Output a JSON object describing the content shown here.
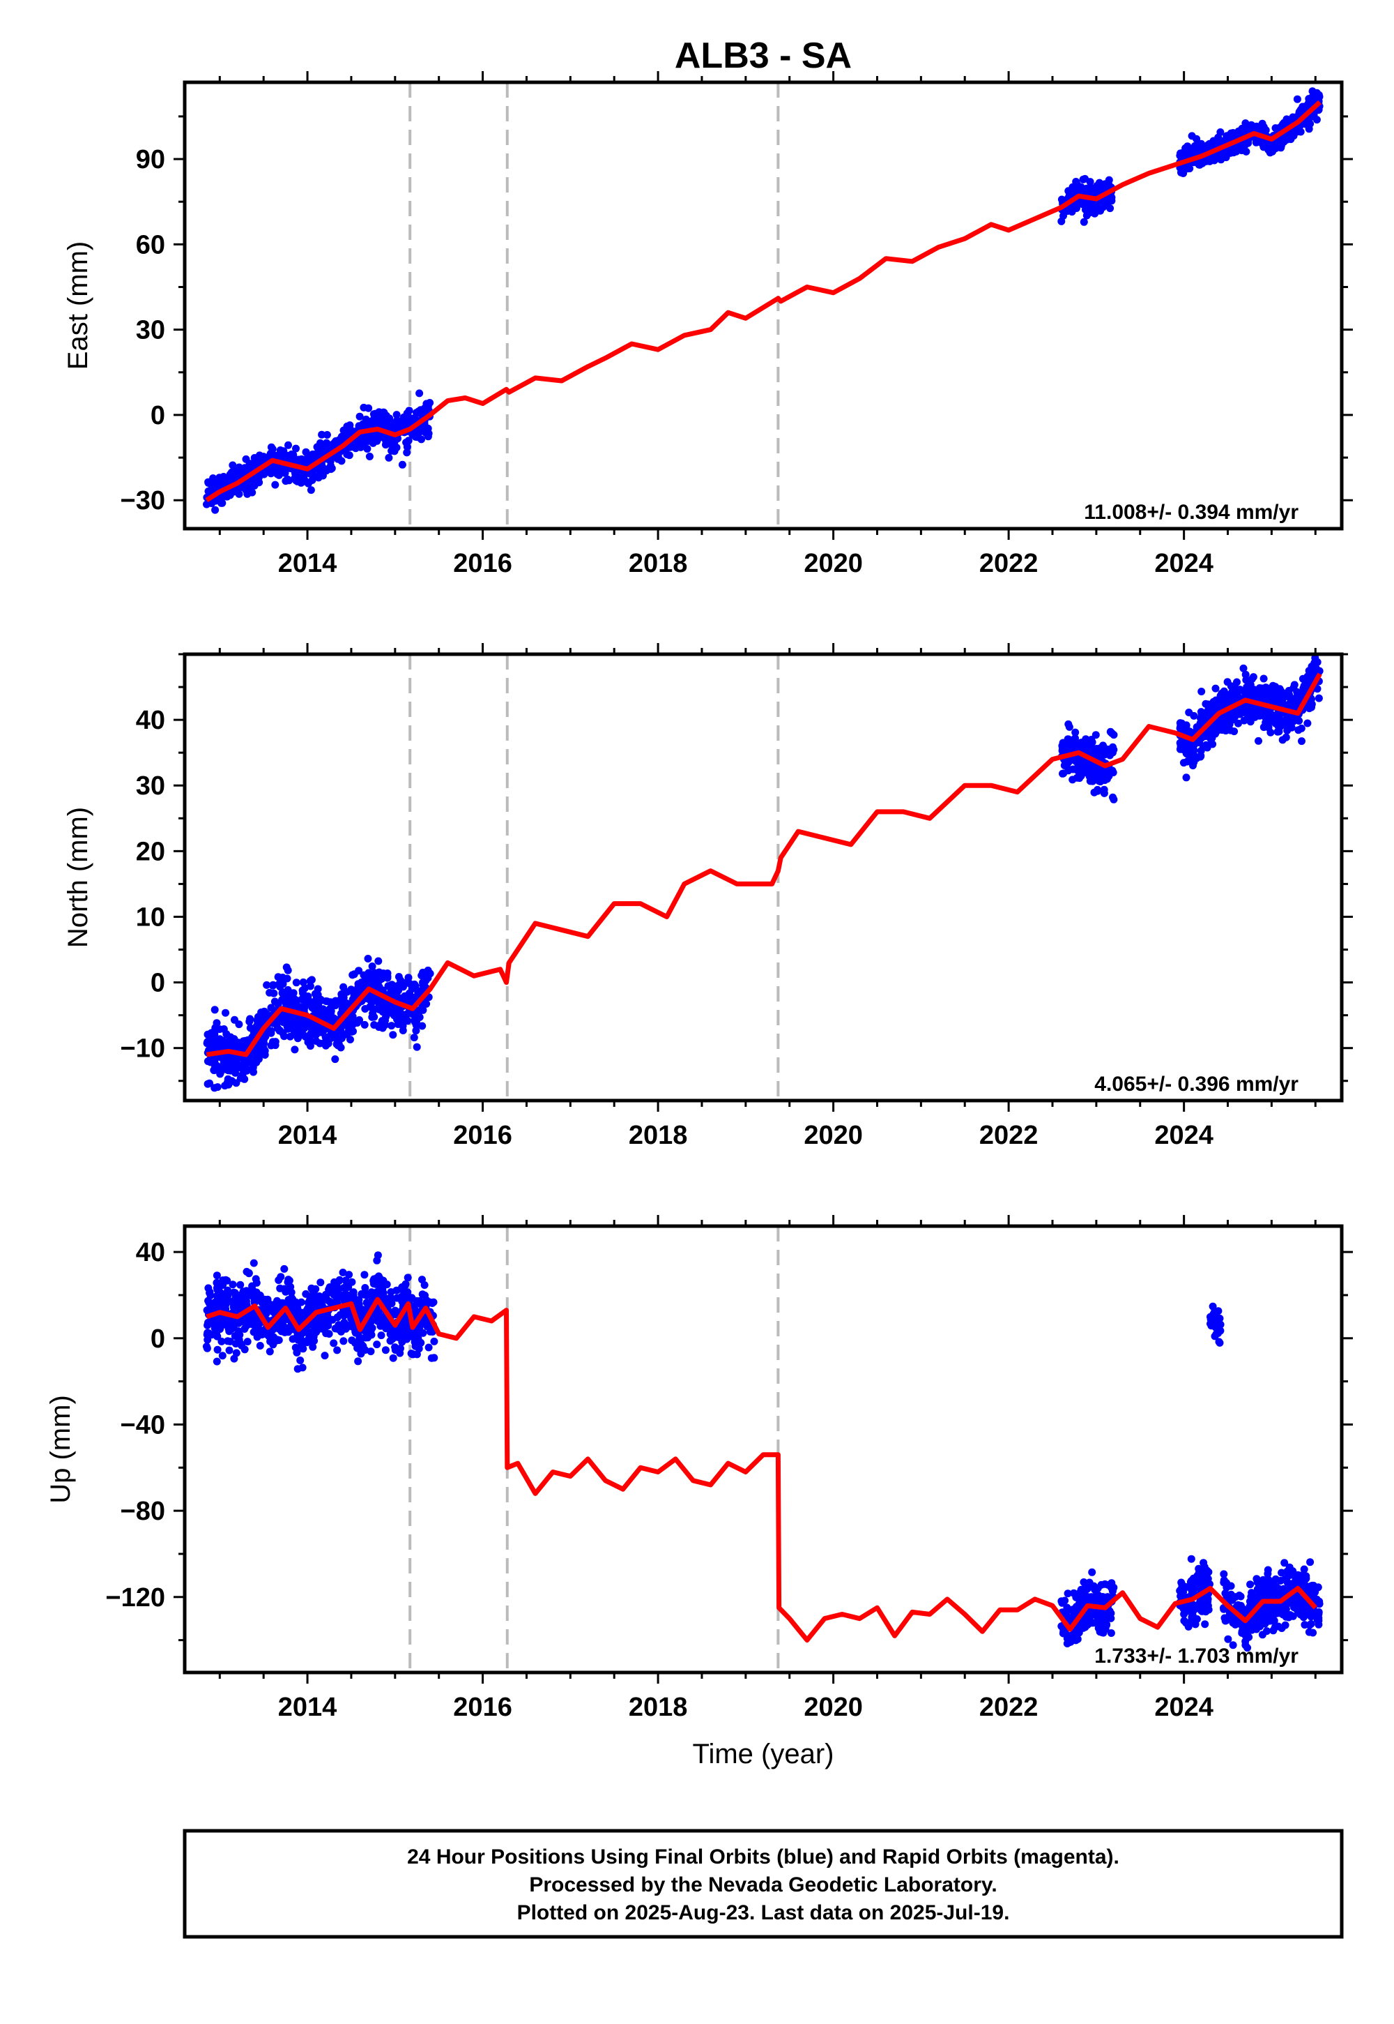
{
  "figure": {
    "title": "ALB3 - SA",
    "footer": [
      "24 Hour Positions Using Final Orbits (blue) and Rapid Orbits (magenta).",
      "Processed by the Nevada Geodetic Laboratory.",
      "Plotted on 2025-Aug-23. Last data on 2025-Jul-19."
    ],
    "colors": {
      "data": "#0000ff",
      "model": "#ff0000",
      "breaks": "#bbbbbb",
      "axis": "#000000"
    }
  },
  "chart_data": [
    {
      "type": "scatter",
      "ylabel": "East (mm)",
      "xlabel": "",
      "rate_text": "11.008+/- 0.394 mm/yr",
      "xlim": [
        2012.6,
        2025.8
      ],
      "ylim": [
        -40,
        117
      ],
      "xticks": [
        2014,
        2016,
        2018,
        2020,
        2022,
        2024
      ],
      "yticks": [
        -30,
        0,
        30,
        60,
        90
      ],
      "breaks": [
        2015.17,
        2016.28,
        2019.37
      ],
      "model": {
        "points": [
          [
            2012.85,
            -30
          ],
          [
            2013.0,
            -27
          ],
          [
            2013.2,
            -24
          ],
          [
            2013.4,
            -20
          ],
          [
            2013.6,
            -16
          ],
          [
            2013.8,
            -17.5
          ],
          [
            2014.0,
            -19
          ],
          [
            2014.2,
            -15
          ],
          [
            2014.4,
            -11
          ],
          [
            2014.6,
            -6
          ],
          [
            2014.8,
            -5
          ],
          [
            2015.0,
            -7
          ],
          [
            2015.17,
            -5
          ],
          [
            2015.4,
            0
          ],
          [
            2015.6,
            5
          ],
          [
            2015.8,
            6
          ],
          [
            2016.0,
            4
          ],
          [
            2016.27,
            9
          ],
          [
            2016.3,
            8
          ],
          [
            2016.6,
            13
          ],
          [
            2016.9,
            12
          ],
          [
            2017.2,
            17
          ],
          [
            2017.4,
            20
          ],
          [
            2017.7,
            25
          ],
          [
            2018.0,
            23
          ],
          [
            2018.3,
            28
          ],
          [
            2018.6,
            30
          ],
          [
            2018.8,
            36
          ],
          [
            2019.0,
            34
          ],
          [
            2019.37,
            41
          ],
          [
            2019.4,
            40
          ],
          [
            2019.7,
            45
          ],
          [
            2020.0,
            43
          ],
          [
            2020.3,
            48
          ],
          [
            2020.6,
            55
          ],
          [
            2020.9,
            54
          ],
          [
            2021.2,
            59
          ],
          [
            2021.5,
            62
          ],
          [
            2021.8,
            67
          ],
          [
            2022.0,
            65
          ],
          [
            2022.3,
            69
          ],
          [
            2022.6,
            73
          ],
          [
            2022.8,
            77
          ],
          [
            2023.0,
            76
          ],
          [
            2023.3,
            81
          ],
          [
            2023.6,
            85
          ],
          [
            2023.9,
            88
          ],
          [
            2024.2,
            91
          ],
          [
            2024.5,
            95
          ],
          [
            2024.8,
            99
          ],
          [
            2025.0,
            97
          ],
          [
            2025.3,
            103
          ],
          [
            2025.55,
            110
          ]
        ]
      },
      "data_segments": [
        {
          "x0": 2012.85,
          "x1": 2015.4,
          "n": 820,
          "sigma": 3.0
        },
        {
          "x0": 2022.6,
          "x1": 2023.2,
          "n": 200,
          "sigma": 2.5
        },
        {
          "x0": 2023.95,
          "x1": 2025.55,
          "n": 520,
          "sigma": 2.2
        }
      ]
    },
    {
      "type": "scatter",
      "ylabel": "North (mm)",
      "xlabel": "",
      "rate_text": "4.065+/- 0.396 mm/yr",
      "xlim": [
        2012.6,
        2025.8
      ],
      "ylim": [
        -18,
        50
      ],
      "xticks": [
        2014,
        2016,
        2018,
        2020,
        2022,
        2024
      ],
      "yticks": [
        -10,
        0,
        10,
        20,
        30,
        40
      ],
      "breaks": [
        2015.17,
        2016.28,
        2019.37
      ],
      "model": {
        "points": [
          [
            2012.85,
            -11
          ],
          [
            2013.1,
            -10.5
          ],
          [
            2013.3,
            -11
          ],
          [
            2013.5,
            -7
          ],
          [
            2013.7,
            -4
          ],
          [
            2014.0,
            -5
          ],
          [
            2014.3,
            -7
          ],
          [
            2014.5,
            -4
          ],
          [
            2014.7,
            -1
          ],
          [
            2015.0,
            -3
          ],
          [
            2015.2,
            -4
          ],
          [
            2015.4,
            -1
          ],
          [
            2015.6,
            3
          ],
          [
            2015.9,
            1
          ],
          [
            2016.2,
            2
          ],
          [
            2016.27,
            0
          ],
          [
            2016.3,
            3
          ],
          [
            2016.6,
            9
          ],
          [
            2016.9,
            8
          ],
          [
            2017.2,
            7
          ],
          [
            2017.5,
            12
          ],
          [
            2017.8,
            12
          ],
          [
            2018.1,
            10
          ],
          [
            2018.3,
            15
          ],
          [
            2018.6,
            17
          ],
          [
            2018.9,
            15
          ],
          [
            2019.3,
            15
          ],
          [
            2019.37,
            17
          ],
          [
            2019.4,
            19
          ],
          [
            2019.6,
            23
          ],
          [
            2019.9,
            22
          ],
          [
            2020.2,
            21
          ],
          [
            2020.5,
            26
          ],
          [
            2020.8,
            26
          ],
          [
            2021.1,
            25
          ],
          [
            2021.5,
            30
          ],
          [
            2021.8,
            30
          ],
          [
            2022.1,
            29
          ],
          [
            2022.5,
            34
          ],
          [
            2022.8,
            35
          ],
          [
            2023.1,
            33
          ],
          [
            2023.3,
            34
          ],
          [
            2023.6,
            39
          ],
          [
            2023.9,
            38
          ],
          [
            2024.1,
            37
          ],
          [
            2024.4,
            41
          ],
          [
            2024.7,
            43
          ],
          [
            2025.0,
            42
          ],
          [
            2025.3,
            41
          ],
          [
            2025.55,
            47
          ]
        ]
      },
      "data_segments": [
        {
          "x0": 2012.85,
          "x1": 2015.4,
          "n": 820,
          "sigma": 2.2
        },
        {
          "x0": 2022.6,
          "x1": 2023.2,
          "n": 200,
          "sigma": 2.0
        },
        {
          "x0": 2023.95,
          "x1": 2025.55,
          "n": 520,
          "sigma": 1.8
        }
      ]
    },
    {
      "type": "scatter",
      "ylabel": "Up (mm)",
      "xlabel": "Time (year)",
      "rate_text": "1.733+/- 1.703 mm/yr",
      "xlim": [
        2012.6,
        2025.8
      ],
      "ylim": [
        -155,
        52
      ],
      "xticks": [
        2014,
        2016,
        2018,
        2020,
        2022,
        2024
      ],
      "yticks": [
        -120,
        -80,
        -40,
        0,
        40
      ],
      "breaks": [
        2015.17,
        2016.28,
        2019.37
      ],
      "model": {
        "points": [
          [
            2012.85,
            10
          ],
          [
            2013.0,
            12
          ],
          [
            2013.2,
            10
          ],
          [
            2013.4,
            15
          ],
          [
            2013.55,
            5
          ],
          [
            2013.75,
            14
          ],
          [
            2013.9,
            4
          ],
          [
            2014.1,
            12
          ],
          [
            2014.3,
            14
          ],
          [
            2014.5,
            16
          ],
          [
            2014.6,
            4
          ],
          [
            2014.8,
            18
          ],
          [
            2015.0,
            6
          ],
          [
            2015.15,
            16
          ],
          [
            2015.2,
            5
          ],
          [
            2015.35,
            14
          ],
          [
            2015.5,
            2
          ],
          [
            2015.7,
            0
          ],
          [
            2015.9,
            10
          ],
          [
            2016.1,
            8
          ],
          [
            2016.27,
            13
          ],
          [
            2016.28,
            -60
          ],
          [
            2016.4,
            -58
          ],
          [
            2016.6,
            -72
          ],
          [
            2016.8,
            -62
          ],
          [
            2017.0,
            -64
          ],
          [
            2017.2,
            -56
          ],
          [
            2017.4,
            -66
          ],
          [
            2017.6,
            -70
          ],
          [
            2017.8,
            -60
          ],
          [
            2018.0,
            -62
          ],
          [
            2018.2,
            -56
          ],
          [
            2018.4,
            -66
          ],
          [
            2018.6,
            -68
          ],
          [
            2018.8,
            -58
          ],
          [
            2019.0,
            -62
          ],
          [
            2019.2,
            -54
          ],
          [
            2019.37,
            -54
          ],
          [
            2019.38,
            -125
          ],
          [
            2019.5,
            -130
          ],
          [
            2019.7,
            -140
          ],
          [
            2019.9,
            -130
          ],
          [
            2020.1,
            -128
          ],
          [
            2020.3,
            -130
          ],
          [
            2020.5,
            -125
          ],
          [
            2020.7,
            -138
          ],
          [
            2020.9,
            -127
          ],
          [
            2021.1,
            -128
          ],
          [
            2021.3,
            -121
          ],
          [
            2021.5,
            -128
          ],
          [
            2021.7,
            -136
          ],
          [
            2021.9,
            -126
          ],
          [
            2022.1,
            -126
          ],
          [
            2022.3,
            -121
          ],
          [
            2022.5,
            -124
          ],
          [
            2022.7,
            -135
          ],
          [
            2022.9,
            -124
          ],
          [
            2023.1,
            -125
          ],
          [
            2023.3,
            -118
          ],
          [
            2023.5,
            -130
          ],
          [
            2023.7,
            -134
          ],
          [
            2023.9,
            -123
          ],
          [
            2024.1,
            -121
          ],
          [
            2024.3,
            -116
          ],
          [
            2024.5,
            -124
          ],
          [
            2024.7,
            -131
          ],
          [
            2024.9,
            -122
          ],
          [
            2025.1,
            -122
          ],
          [
            2025.3,
            -116
          ],
          [
            2025.5,
            -125
          ]
        ]
      },
      "data_segments": [
        {
          "x0": 2012.85,
          "x1": 2015.45,
          "n": 900,
          "sigma": 7.5
        },
        {
          "x0": 2022.6,
          "x1": 2023.2,
          "n": 200,
          "sigma": 6.0
        },
        {
          "x0": 2023.95,
          "x1": 2024.3,
          "n": 120,
          "sigma": 6.0
        },
        {
          "x0": 2024.3,
          "x1": 2024.42,
          "n": 30,
          "sigma": 4.0,
          "offset": 125
        },
        {
          "x0": 2024.45,
          "x1": 2025.55,
          "n": 420,
          "sigma": 6.5
        }
      ]
    }
  ]
}
